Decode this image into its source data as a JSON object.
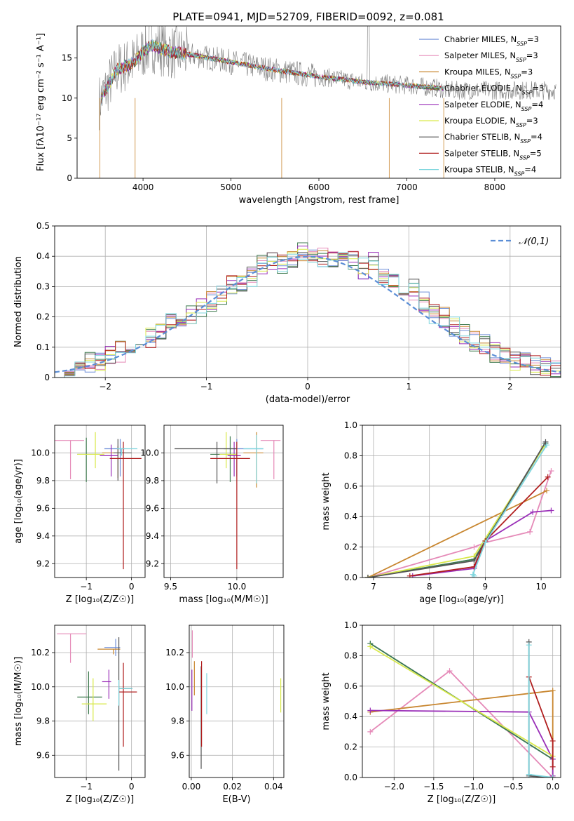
{
  "figure": {
    "title": "PLATE=0941, MJD=52709, FIBERID=0092, z=0.081"
  },
  "colors": {
    "Chabrier MILES": "#6f8fd8",
    "Salpeter MILES": "#e58ab8",
    "Kroupa MILES": "#c8862f",
    "Chabrier ELODIE": "#3f7a4f",
    "Salpeter ELODIE": "#9a2fb8",
    "Kroupa ELODIE": "#d9e94a",
    "Chabrier STELIB": "#555555",
    "Salpeter STELIB": "#b01e1e",
    "Kroupa STELIB": "#7fd6de",
    "grid": "#b0b0b0",
    "normal": "#5b8ed6",
    "observed": "#7f7f7f"
  },
  "chart_data": [
    {
      "id": "spectrum",
      "type": "line",
      "title": "PLATE=0941, MJD=52709, FIBERID=0092, z=0.081",
      "xlabel": "wavelength [Angstrom, rest frame]",
      "ylabel": "Flux [fλ10⁻¹⁷ erg cm⁻² s⁻¹ A⁻¹]",
      "xlim": [
        3250,
        8750
      ],
      "ylim": [
        0,
        19
      ],
      "xticks": [
        4000,
        5000,
        6000,
        7000,
        8000
      ],
      "yticks": [
        0,
        5,
        10,
        15
      ],
      "legend_placement": "upper-right",
      "legend": [
        {
          "label": "Chabrier MILES, N",
          "sub": "SSP",
          "suffix": "=3"
        },
        {
          "label": "Salpeter MILES, N",
          "sub": "SSP",
          "suffix": "=3"
        },
        {
          "label": "Kroupa MILES, N",
          "sub": "SSP",
          "suffix": "=3"
        },
        {
          "label": "Chabrier ELODIE, N",
          "sub": "SSP",
          "suffix": "=3"
        },
        {
          "label": "Salpeter ELODIE, N",
          "sub": "SSP",
          "suffix": "=4"
        },
        {
          "label": "Kroupa ELODIE, N",
          "sub": "SSP",
          "suffix": "=3"
        },
        {
          "label": "Chabrier STELIB, N",
          "sub": "SSP",
          "suffix": "=4"
        },
        {
          "label": "Salpeter STELIB, N",
          "sub": "SSP",
          "suffix": "=5"
        },
        {
          "label": "Kroupa STELIB, N",
          "sub": "SSP",
          "suffix": "=4"
        }
      ],
      "continuum": {
        "x": [
          3500,
          3700,
          3900,
          4000,
          4100,
          4300,
          4500,
          5000,
          5500,
          6000,
          6500,
          7000,
          7400
        ],
        "y": [
          9.5,
          13.5,
          14.5,
          15.8,
          16.6,
          15.8,
          15.5,
          14.5,
          13.5,
          12.7,
          12.0,
          11.6,
          11.2
        ]
      }
    },
    {
      "id": "residuals",
      "type": "histogram",
      "xlabel": "(data-model)/error",
      "ylabel": "Normed distribution",
      "xlim": [
        -2.5,
        2.5
      ],
      "ylim": [
        0,
        0.5
      ],
      "xticks": [
        -2,
        -1,
        0,
        1,
        2
      ],
      "yticks": [
        0.0,
        0.1,
        0.2,
        0.3,
        0.4,
        0.5
      ],
      "legend_label": "𝒩(0,1)",
      "bin_edges": [
        -2.5,
        -2.4,
        -2.3,
        -2.2,
        -2.1,
        -2.0,
        -1.9,
        -1.8,
        -1.7,
        -1.6,
        -1.5,
        -1.4,
        -1.3,
        -1.2,
        -1.1,
        -1.0,
        -0.9,
        -0.8,
        -0.7,
        -0.6,
        -0.5,
        -0.4,
        -0.3,
        -0.2,
        -0.1,
        0.0,
        0.1,
        0.2,
        0.3,
        0.4,
        0.5,
        0.6,
        0.7,
        0.8,
        0.9,
        1.0,
        1.1,
        1.2,
        1.3,
        1.4,
        1.5,
        1.6,
        1.7,
        1.8,
        1.9,
        2.0,
        2.1,
        2.2,
        2.3,
        2.4,
        2.5
      ],
      "reference_counts": [
        0.02,
        0.025,
        0.038,
        0.05,
        0.055,
        0.08,
        0.085,
        0.095,
        0.11,
        0.13,
        0.15,
        0.18,
        0.195,
        0.21,
        0.23,
        0.25,
        0.27,
        0.305,
        0.31,
        0.33,
        0.37,
        0.38,
        0.37,
        0.39,
        0.42,
        0.4,
        0.4,
        0.39,
        0.38,
        0.39,
        0.36,
        0.38,
        0.33,
        0.33,
        0.3,
        0.29,
        0.25,
        0.21,
        0.2,
        0.17,
        0.14,
        0.12,
        0.11,
        0.08,
        0.07,
        0.055,
        0.05,
        0.04,
        0.03,
        0.025
      ]
    },
    {
      "id": "age_vs_Z",
      "type": "errorbar",
      "xlabel": "Z [log₁₀(Z/Z☉)]",
      "ylabel": "age  [log₁₀(age/yr)]",
      "xlim": [
        -1.7,
        0.3
      ],
      "ylim": [
        9.1,
        10.2
      ],
      "xticks": [
        -1,
        0
      ],
      "yticks": [
        9.2,
        9.4,
        9.6,
        9.8,
        10.0
      ],
      "points": [
        {
          "model": "Chabrier MILES",
          "x": -0.25,
          "y": 10.03,
          "xerr": [
            0.35,
            0.1
          ],
          "yerr": [
            0.2,
            0.07
          ]
        },
        {
          "model": "Salpeter MILES",
          "x": -1.35,
          "y": 10.09,
          "xerr": [
            0.35,
            0.3
          ],
          "yerr": [
            0.28,
            0.0
          ]
        },
        {
          "model": "Kroupa MILES",
          "x": -0.3,
          "y": 10.0,
          "xerr": [
            0.35,
            0.15
          ],
          "yerr": [
            0.18,
            0.05
          ]
        },
        {
          "model": "Chabrier ELODIE",
          "x": -1.0,
          "y": 9.99,
          "xerr": [
            0.2,
            0.3
          ],
          "yerr": [
            0.2,
            0.12
          ]
        },
        {
          "model": "Salpeter ELODIE",
          "x": -0.45,
          "y": 9.98,
          "xerr": [
            0.25,
            0.15
          ],
          "yerr": [
            0.15,
            0.08
          ]
        },
        {
          "model": "Kroupa ELODIE",
          "x": -0.8,
          "y": 9.99,
          "xerr": [
            0.4,
            0.2
          ],
          "yerr": [
            0.1,
            0.16
          ]
        },
        {
          "model": "Chabrier STELIB",
          "x": -0.3,
          "y": 10.0,
          "xerr": [
            0.1,
            0.3
          ],
          "yerr": [
            0.2,
            0.1
          ]
        },
        {
          "model": "Salpeter STELIB",
          "x": -0.18,
          "y": 9.96,
          "xerr": [
            0.3,
            0.4
          ],
          "yerr": [
            0.8,
            0.12
          ]
        },
        {
          "model": "Kroupa STELIB",
          "x": -0.22,
          "y": 10.03,
          "xerr": [
            0.1,
            0.35
          ],
          "yerr": [
            0.05,
            0.0
          ]
        }
      ]
    },
    {
      "id": "age_vs_mass",
      "type": "errorbar",
      "xlabel": "mass [log₁₀(M/M☉)]",
      "ylabel": "",
      "xlim": [
        9.45,
        10.35
      ],
      "ylim": [
        9.1,
        10.2
      ],
      "xticks": [
        9.5,
        10.0
      ],
      "yticks": [
        9.2,
        9.4,
        9.6,
        9.8,
        10.0
      ],
      "points": [
        {
          "model": "Chabrier MILES",
          "x": 10.0,
          "y": 10.03,
          "xerr": [
            0.1,
            0.2
          ],
          "yerr": [
            0.2,
            0.07
          ]
        },
        {
          "model": "Salpeter MILES",
          "x": 10.28,
          "y": 10.09,
          "xerr": [
            0.1,
            0.05
          ],
          "yerr": [
            0.28,
            0.0
          ]
        },
        {
          "model": "Kroupa MILES",
          "x": 10.15,
          "y": 10.0,
          "xerr": [
            0.1,
            0.05
          ],
          "yerr": [
            0.25,
            0.15
          ]
        },
        {
          "model": "Chabrier ELODIE",
          "x": 9.95,
          "y": 9.99,
          "xerr": [
            0.15,
            0.05
          ],
          "yerr": [
            0.2,
            0.13
          ]
        },
        {
          "model": "Salpeter ELODIE",
          "x": 9.98,
          "y": 9.98,
          "xerr": [
            0.05,
            0.05
          ],
          "yerr": [
            0.15,
            0.1
          ]
        },
        {
          "model": "Kroupa ELODIE",
          "x": 9.92,
          "y": 9.99,
          "xerr": [
            0.05,
            0.08
          ],
          "yerr": [
            0.1,
            0.16
          ]
        },
        {
          "model": "Chabrier STELIB",
          "x": 9.85,
          "y": 10.03,
          "xerr": [
            0.32,
            0.15
          ],
          "yerr": [
            0.25,
            0.05
          ]
        },
        {
          "model": "Salpeter STELIB",
          "x": 10.0,
          "y": 9.96,
          "xerr": [
            0.2,
            0.1
          ],
          "yerr": [
            0.8,
            0.12
          ]
        },
        {
          "model": "Kroupa STELIB",
          "x": 10.15,
          "y": 10.03,
          "xerr": [
            0.1,
            0.05
          ],
          "yerr": [
            0.25,
            0.1
          ]
        }
      ]
    },
    {
      "id": "weight_vs_age",
      "type": "line",
      "xlabel": "age  [log₁₀(age/yr)]",
      "ylabel": "mass weight",
      "xlim": [
        6.8,
        10.35
      ],
      "ylim": [
        0,
        1
      ],
      "xticks": [
        7,
        8,
        9,
        10
      ],
      "yticks": [
        0.0,
        0.2,
        0.4,
        0.6,
        0.8,
        1.0
      ],
      "series": [
        {
          "model": "Chabrier MILES",
          "x": [
            6.9,
            8.8,
            10.07
          ],
          "y": [
            0.0,
            0.12,
            0.88
          ]
        },
        {
          "model": "Salpeter MILES",
          "x": [
            6.9,
            8.8,
            9.0,
            9.8,
            10.18
          ],
          "y": [
            0.0,
            0.2,
            0.23,
            0.3,
            0.7
          ]
        },
        {
          "model": "Kroupa MILES",
          "x": [
            6.9,
            10.1
          ],
          "y": [
            0.0,
            0.57
          ]
        },
        {
          "model": "Chabrier ELODIE",
          "x": [
            6.9,
            8.8,
            10.08
          ],
          "y": [
            0.0,
            0.12,
            0.88
          ]
        },
        {
          "model": "Salpeter ELODIE",
          "x": [
            7.7,
            8.8,
            9.0,
            9.85,
            10.18
          ],
          "y": [
            0.01,
            0.06,
            0.24,
            0.43,
            0.44
          ]
        },
        {
          "model": "Kroupa ELODIE",
          "x": [
            6.9,
            8.8,
            10.05
          ],
          "y": [
            0.0,
            0.14,
            0.86
          ]
        },
        {
          "model": "Chabrier STELIB",
          "x": [
            6.9,
            8.8,
            10.08
          ],
          "y": [
            0.0,
            0.11,
            0.89
          ]
        },
        {
          "model": "Salpeter STELIB",
          "x": [
            7.65,
            8.8,
            9.0,
            10.12
          ],
          "y": [
            0.01,
            0.07,
            0.24,
            0.66
          ]
        },
        {
          "model": "Kroupa STELIB",
          "x": [
            8.8,
            8.78,
            9.0,
            10.1
          ],
          "y": [
            0.01,
            0.02,
            0.23,
            0.87
          ]
        }
      ]
    },
    {
      "id": "mass_vs_Z",
      "type": "errorbar",
      "xlabel": "Z [log₁₀(Z/Z☉)]",
      "ylabel": "mass [log₁₀(M/M☉)]",
      "xlim": [
        -1.7,
        0.3
      ],
      "ylim": [
        9.47,
        10.36
      ],
      "xticks": [
        -1,
        0
      ],
      "yticks": [
        9.6,
        9.8,
        10.0,
        10.2
      ],
      "points": [
        {
          "model": "Chabrier MILES",
          "x": -0.35,
          "y": 10.23,
          "xerr": [
            0.25,
            0.1
          ],
          "yerr": [
            0.05,
            0.05
          ]
        },
        {
          "model": "Salpeter MILES",
          "x": -1.35,
          "y": 10.31,
          "xerr": [
            0.3,
            0.35
          ],
          "yerr": [
            0.17,
            0.0
          ]
        },
        {
          "model": "Kroupa MILES",
          "x": -0.4,
          "y": 10.22,
          "xerr": [
            0.35,
            0.15
          ],
          "yerr": [
            0.03,
            0.0
          ]
        },
        {
          "model": "Chabrier ELODIE",
          "x": -0.95,
          "y": 9.94,
          "xerr": [
            0.25,
            0.3
          ],
          "yerr": [
            0.1,
            0.15
          ]
        },
        {
          "model": "Salpeter ELODIE",
          "x": -0.5,
          "y": 10.03,
          "xerr": [
            0.15,
            0.05
          ],
          "yerr": [
            0.1,
            0.07
          ]
        },
        {
          "model": "Kroupa ELODIE",
          "x": -0.85,
          "y": 9.9,
          "xerr": [
            0.25,
            0.3
          ],
          "yerr": [
            0.1,
            0.15
          ]
        },
        {
          "model": "Chabrier STELIB",
          "x": -0.28,
          "y": 9.99,
          "xerr": [
            0.0,
            0.3
          ],
          "yerr": [
            0.48,
            0.3
          ]
        },
        {
          "model": "Salpeter STELIB",
          "x": -0.18,
          "y": 9.97,
          "xerr": [
            0.1,
            0.3
          ],
          "yerr": [
            0.32,
            0.17
          ]
        },
        {
          "model": "Kroupa STELIB",
          "x": -0.28,
          "y": 9.99,
          "xerr": [
            0.0,
            0.3
          ],
          "yerr": [
            0.1,
            0.05
          ]
        }
      ]
    },
    {
      "id": "mass_vs_ebv",
      "type": "errorbar",
      "xlabel": "E(B-V)",
      "ylabel": "",
      "xlim": [
        -0.001,
        0.045
      ],
      "ylim": [
        9.47,
        10.36
      ],
      "xticks": [
        0.0,
        0.02,
        0.04
      ],
      "yticks": [
        9.6,
        9.8,
        10.0,
        10.2
      ],
      "points": [
        {
          "model": "Salpeter MILES",
          "x": 0.0005,
          "y": 10.25,
          "yerr": [
            0.08,
            0.08
          ]
        },
        {
          "model": "Kroupa MILES",
          "x": 0.0015,
          "y": 10.05,
          "yerr": [
            0.1,
            0.1
          ]
        },
        {
          "model": "Salpeter ELODIE",
          "x": 0.0003,
          "y": 9.98,
          "yerr": [
            0.12,
            0.12
          ]
        },
        {
          "model": "Kroupa ELODIE",
          "x": 0.0435,
          "y": 9.95,
          "yerr": [
            0.1,
            0.1
          ]
        },
        {
          "model": "Chabrier STELIB",
          "x": 0.0048,
          "y": 9.82,
          "yerr": [
            0.3,
            0.3
          ]
        },
        {
          "model": "Salpeter STELIB",
          "x": 0.005,
          "y": 9.9,
          "yerr": [
            0.25,
            0.25
          ]
        },
        {
          "model": "Kroupa STELIB",
          "x": 0.0075,
          "y": 9.96,
          "yerr": [
            0.12,
            0.12
          ]
        }
      ]
    },
    {
      "id": "weight_vs_Z",
      "type": "line",
      "xlabel": "Z [log₁₀(Z/Z☉)]",
      "ylabel": "mass weight",
      "xlim": [
        -2.4,
        0.1
      ],
      "ylim": [
        0,
        1
      ],
      "xticks": [
        -2.0,
        -1.5,
        -1.0,
        -0.5,
        0.0
      ],
      "yticks": [
        0.0,
        0.2,
        0.4,
        0.6,
        0.8,
        1.0
      ],
      "series": [
        {
          "model": "Chabrier MILES",
          "x": [
            -2.3,
            0.0
          ],
          "y": [
            0.88,
            0.12
          ]
        },
        {
          "model": "Salpeter MILES",
          "x": [
            -2.3,
            -1.3,
            0.0
          ],
          "y": [
            0.3,
            0.7,
            0.0
          ]
        },
        {
          "model": "Kroupa MILES",
          "x": [
            -2.3,
            0.0,
            0.0
          ],
          "y": [
            0.43,
            0.57,
            0.0
          ]
        },
        {
          "model": "Chabrier ELODIE",
          "x": [
            -2.3,
            0.0
          ],
          "y": [
            0.88,
            0.12
          ]
        },
        {
          "model": "Salpeter ELODIE",
          "x": [
            -2.3,
            -0.3,
            0.0,
            0.0
          ],
          "y": [
            0.44,
            0.43,
            0.12,
            0.01
          ]
        },
        {
          "model": "Kroupa ELODIE",
          "x": [
            -2.3,
            0.0
          ],
          "y": [
            0.86,
            0.14
          ]
        },
        {
          "model": "Chabrier STELIB",
          "x": [
            -0.3,
            -0.3,
            0.0
          ],
          "y": [
            0.89,
            0.01,
            0.0
          ]
        },
        {
          "model": "Salpeter STELIB",
          "x": [
            -0.3,
            0.0,
            0.0
          ],
          "y": [
            0.66,
            0.24,
            0.07
          ]
        },
        {
          "model": "Kroupa STELIB",
          "x": [
            -0.3,
            -0.3,
            0.0
          ],
          "y": [
            0.87,
            0.02,
            0.0
          ]
        }
      ]
    }
  ]
}
